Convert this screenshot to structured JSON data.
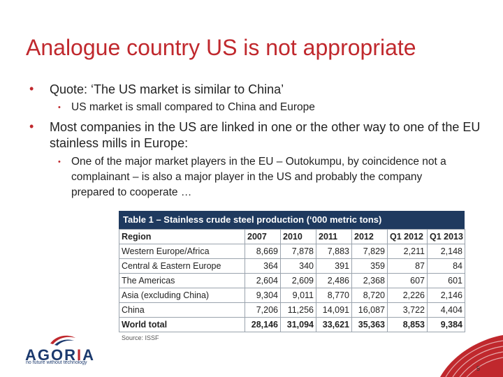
{
  "slide": {
    "title": "Analogue country US is not appropriate",
    "bullets": [
      {
        "text": "Quote: ‘The US market is similar to China’",
        "sub": [
          "US market is small compared to China and Europe"
        ]
      },
      {
        "text": "Most companies in the US are linked in one or the other way to one of the EU stainless mills in Europe:",
        "sub": [
          "One of the major market players in the EU – Outokumpu, by coincidence not a complainant – is also a major player in the US and probably the company prepared to cooperate …"
        ]
      }
    ],
    "bullet_symbol": "•",
    "page_number": "5"
  },
  "table": {
    "caption": "Table 1 – Stainless crude steel production (‘000 metric tons)",
    "headers": [
      "Region",
      "2007",
      "2010",
      "2011",
      "2012",
      "Q1 2012",
      "Q1 2013"
    ],
    "rows": [
      [
        "Western Europe/Africa",
        "8,669",
        "7,878",
        "7,883",
        "7,829",
        "2,211",
        "2,148"
      ],
      [
        "Central & Eastern Europe",
        "364",
        "340",
        "391",
        "359",
        "87",
        "84"
      ],
      [
        "The Americas",
        "2,604",
        "2,609",
        "2,486",
        "2,368",
        "607",
        "601"
      ],
      [
        "Asia (excluding China)",
        "9,304",
        "9,011",
        "8,770",
        "8,720",
        "2,226",
        "2,146"
      ],
      [
        "China",
        "7,206",
        "11,256",
        "14,091",
        "16,087",
        "3,722",
        "4,404"
      ],
      [
        "World total",
        "28,146",
        "31,094",
        "33,621",
        "35,363",
        "8,853",
        "9,384"
      ]
    ],
    "source": "Source: ISSF"
  },
  "logo": {
    "name_pre": "AGOR",
    "name_i": "I",
    "name_post": "A",
    "tagline": "no future without technology"
  },
  "colors": {
    "accent": "#c0282d",
    "table_header": "#1f3a5f",
    "logo_blue": "#1c3a6e"
  }
}
